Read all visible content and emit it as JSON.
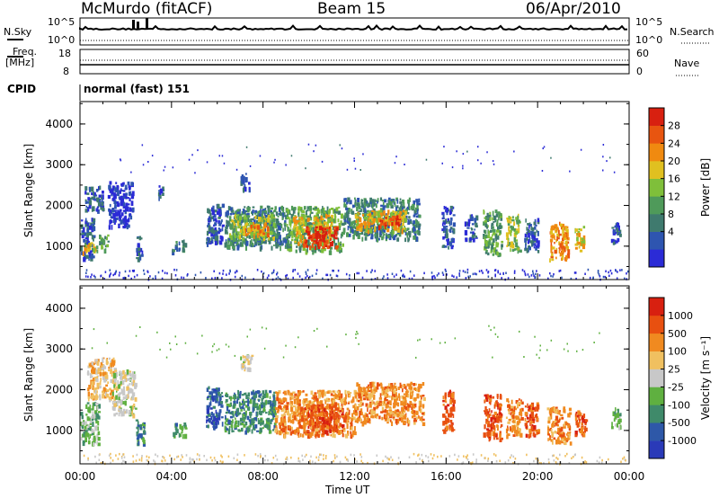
{
  "header": {
    "station": "McMurdo (fitACF)",
    "beam": "Beam 15",
    "date": "06/Apr/2010"
  },
  "strip_panels": {
    "nsky_label": "N.Sky",
    "nsky_ticks": [
      "10^5",
      "10^0"
    ],
    "nsearch_label": "N.Search",
    "nsearch_ticks": [
      "10^5",
      "10^0"
    ],
    "freq_label": "Freq.",
    "freq_unit": "[MHz]",
    "freq_ticks": [
      "18",
      "8"
    ],
    "nave_label": "Nave",
    "nave_ticks": [
      "60",
      "0"
    ],
    "cpid_label": "CPID",
    "cpid_value": "normal (fast) 151"
  },
  "chart_data": [
    {
      "type": "heatmap",
      "panel": "power",
      "ylabel": "Slant Range [km]",
      "xlabel": "",
      "x_ticks": [
        "00:00",
        "04:00",
        "08:00",
        "12:00",
        "16:00",
        "20:00",
        "00:00"
      ],
      "y_ticks": [
        1000,
        2000,
        3000,
        4000
      ],
      "ylim": [
        180,
        4550
      ],
      "xlim_hours": [
        0,
        24
      ],
      "colorbar": {
        "label": "Power [dB]",
        "ticks": [
          "28",
          "24",
          "20",
          "16",
          "12",
          "8",
          "4"
        ],
        "colors": [
          "#2b2bd6",
          "#2e55b0",
          "#3f7a6e",
          "#4f9a5a",
          "#7fbf3a",
          "#e0c020",
          "#f08a10",
          "#e85510",
          "#d82010"
        ]
      },
      "segments": [
        {
          "t0": 0.0,
          "t1": 0.6,
          "r0": 700,
          "r1": 1700,
          "v": 6
        },
        {
          "t0": 0.1,
          "t1": 0.7,
          "r0": 850,
          "r1": 1100,
          "v": 18
        },
        {
          "t0": 0.7,
          "t1": 1.2,
          "r0": 900,
          "r1": 1300,
          "v": 12
        },
        {
          "t0": 0.2,
          "t1": 1.0,
          "r0": 1900,
          "r1": 2500,
          "v": 6
        },
        {
          "t0": 1.2,
          "t1": 2.3,
          "r0": 1500,
          "r1": 2600,
          "v": 5
        },
        {
          "t0": 2.4,
          "t1": 2.7,
          "r0": 700,
          "r1": 1300,
          "v": 6
        },
        {
          "t0": 3.4,
          "t1": 3.6,
          "r0": 2200,
          "r1": 2500,
          "v": 8
        },
        {
          "t0": 4.0,
          "t1": 4.6,
          "r0": 900,
          "r1": 1200,
          "v": 10
        },
        {
          "t0": 5.5,
          "t1": 6.2,
          "r0": 1100,
          "r1": 2100,
          "v": 6
        },
        {
          "t0": 6.3,
          "t1": 9.0,
          "r0": 1000,
          "r1": 2000,
          "v": 10
        },
        {
          "t0": 6.5,
          "t1": 8.5,
          "r0": 1200,
          "r1": 1800,
          "v": 16
        },
        {
          "t0": 7.0,
          "t1": 8.2,
          "r0": 1300,
          "r1": 1600,
          "v": 22
        },
        {
          "t0": 7.0,
          "t1": 7.4,
          "r0": 2400,
          "r1": 2800,
          "v": 8
        },
        {
          "t0": 9.0,
          "t1": 11.5,
          "r0": 900,
          "r1": 2000,
          "v": 12
        },
        {
          "t0": 9.3,
          "t1": 11.0,
          "r0": 1100,
          "r1": 1800,
          "v": 20
        },
        {
          "t0": 9.7,
          "t1": 11.2,
          "r0": 1000,
          "r1": 1500,
          "v": 28
        },
        {
          "t0": 11.5,
          "t1": 14.8,
          "r0": 1200,
          "r1": 2200,
          "v": 10
        },
        {
          "t0": 12.0,
          "t1": 14.2,
          "r0": 1400,
          "r1": 1900,
          "v": 18
        },
        {
          "t0": 13.0,
          "t1": 14.0,
          "r0": 1500,
          "r1": 1800,
          "v": 24
        },
        {
          "t0": 15.8,
          "t1": 16.3,
          "r0": 1000,
          "r1": 2000,
          "v": 8
        },
        {
          "t0": 16.8,
          "t1": 17.3,
          "r0": 1200,
          "r1": 1800,
          "v": 6
        },
        {
          "t0": 17.6,
          "t1": 18.4,
          "r0": 800,
          "r1": 1900,
          "v": 12
        },
        {
          "t0": 18.6,
          "t1": 19.2,
          "r0": 900,
          "r1": 1800,
          "v": 16
        },
        {
          "t0": 19.4,
          "t1": 20.0,
          "r0": 900,
          "r1": 1700,
          "v": 8
        },
        {
          "t0": 20.5,
          "t1": 21.3,
          "r0": 700,
          "r1": 1600,
          "v": 22
        },
        {
          "t0": 21.6,
          "t1": 22.0,
          "r0": 900,
          "r1": 1500,
          "v": 20
        },
        {
          "t0": 23.2,
          "t1": 23.6,
          "r0": 1100,
          "r1": 1600,
          "v": 8
        }
      ]
    },
    {
      "type": "heatmap",
      "panel": "velocity",
      "ylabel": "Slant Range [km]",
      "xlabel": "Time UT",
      "x_ticks": [
        "00:00",
        "04:00",
        "08:00",
        "12:00",
        "16:00",
        "20:00",
        "00:00"
      ],
      "y_ticks": [
        1000,
        2000,
        3000,
        4000
      ],
      "ylim": [
        180,
        4550
      ],
      "xlim_hours": [
        0,
        24
      ],
      "colorbar": {
        "label": "Velocity [m s^-1]",
        "ticks": [
          "1000",
          "500",
          "100",
          "25",
          "-25",
          "-100",
          "-500",
          "-1000"
        ],
        "colors": [
          "#2a3ab8",
          "#2e58a8",
          "#3f8a6a",
          "#5fb040",
          "#c8c8c8",
          "#f0c060",
          "#f08a20",
          "#e85010",
          "#d82010"
        ]
      },
      "segments": [
        {
          "t0": 0.0,
          "t1": 0.8,
          "r0": 700,
          "r1": 1700,
          "v": 3
        },
        {
          "t0": 0.3,
          "t1": 1.5,
          "r0": 1800,
          "r1": 2800,
          "v": 5
        },
        {
          "t0": 1.4,
          "t1": 2.4,
          "r0": 1400,
          "r1": 2500,
          "v": 4
        },
        {
          "t0": 2.4,
          "t1": 2.8,
          "r0": 700,
          "r1": 1300,
          "v": 2
        },
        {
          "t0": 4.0,
          "t1": 4.6,
          "r0": 900,
          "r1": 1200,
          "v": 2
        },
        {
          "t0": 5.5,
          "t1": 6.2,
          "r0": 1100,
          "r1": 2100,
          "v": 1
        },
        {
          "t0": 6.3,
          "t1": 8.5,
          "r0": 1000,
          "r1": 2000,
          "v": 2
        },
        {
          "t0": 7.0,
          "t1": 7.5,
          "r0": 2500,
          "r1": 2900,
          "v": 4
        },
        {
          "t0": 8.5,
          "t1": 12.0,
          "r0": 900,
          "r1": 2000,
          "v": 6
        },
        {
          "t0": 9.5,
          "t1": 11.5,
          "r0": 1000,
          "r1": 1700,
          "v": 7
        },
        {
          "t0": 12.0,
          "t1": 15.0,
          "r0": 1200,
          "r1": 2200,
          "v": 6
        },
        {
          "t0": 15.8,
          "t1": 16.3,
          "r0": 1000,
          "r1": 2000,
          "v": 7
        },
        {
          "t0": 17.6,
          "t1": 18.4,
          "r0": 800,
          "r1": 1900,
          "v": 7
        },
        {
          "t0": 18.6,
          "t1": 19.3,
          "r0": 900,
          "r1": 1800,
          "v": 6
        },
        {
          "t0": 19.4,
          "t1": 20.0,
          "r0": 900,
          "r1": 1700,
          "v": 7
        },
        {
          "t0": 20.4,
          "t1": 21.4,
          "r0": 700,
          "r1": 1600,
          "v": 6
        },
        {
          "t0": 21.6,
          "t1": 22.1,
          "r0": 900,
          "r1": 1500,
          "v": 7
        },
        {
          "t0": 23.2,
          "t1": 23.6,
          "r0": 1100,
          "r1": 1600,
          "v": 3
        }
      ]
    }
  ]
}
